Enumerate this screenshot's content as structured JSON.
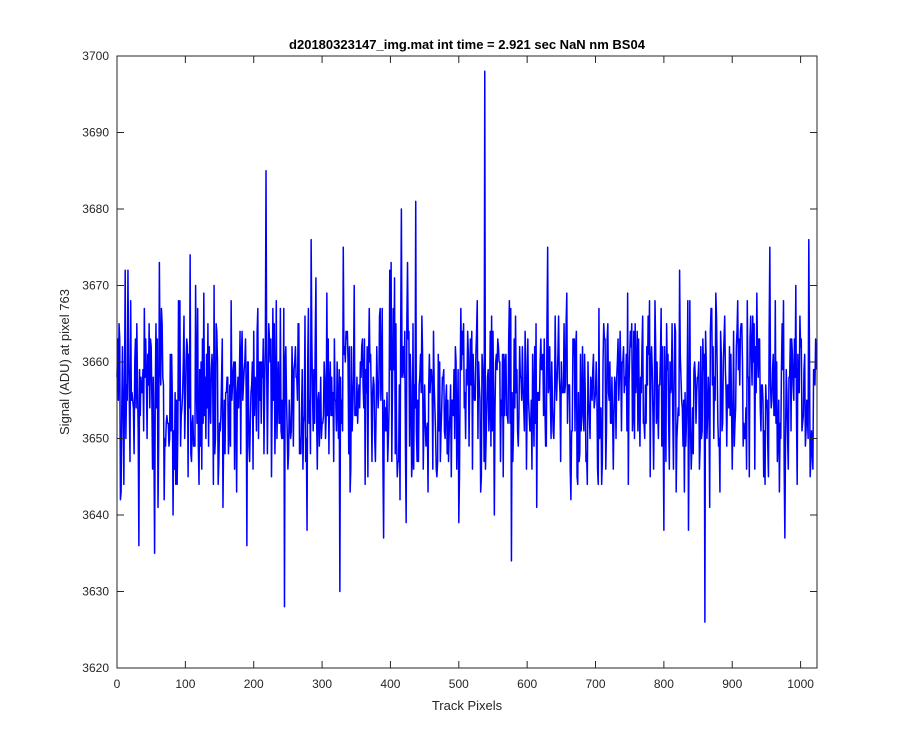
{
  "chart_data": {
    "type": "line",
    "title": "d20180323147_img.mat int time = 2.921 sec  NaN nm BS04",
    "xlabel": "Track Pixels",
    "ylabel": "Signal (ADU) at pixel 763",
    "xlim": [
      0,
      1024
    ],
    "ylim": [
      3620,
      3700
    ],
    "xticks": [
      0,
      100,
      200,
      300,
      400,
      500,
      600,
      700,
      800,
      900,
      1000
    ],
    "yticks": [
      3620,
      3630,
      3640,
      3650,
      3660,
      3670,
      3680,
      3690,
      3700
    ],
    "grid": false,
    "series": [
      {
        "color": "#0000ff",
        "noise": {
          "points": 1024,
          "center": 3656,
          "spread": 6.5,
          "min": 3632,
          "max": 3674
        },
        "spikes": [
          {
            "x": 5,
            "y": 3642
          },
          {
            "x": 12,
            "y": 3672
          },
          {
            "x": 32,
            "y": 3636
          },
          {
            "x": 55,
            "y": 3635
          },
          {
            "x": 62,
            "y": 3673
          },
          {
            "x": 107,
            "y": 3674
          },
          {
            "x": 155,
            "y": 3641
          },
          {
            "x": 190,
            "y": 3636
          },
          {
            "x": 218,
            "y": 3685
          },
          {
            "x": 245,
            "y": 3628
          },
          {
            "x": 278,
            "y": 3638
          },
          {
            "x": 284,
            "y": 3676
          },
          {
            "x": 326,
            "y": 3630
          },
          {
            "x": 331,
            "y": 3675
          },
          {
            "x": 390,
            "y": 3637
          },
          {
            "x": 416,
            "y": 3680
          },
          {
            "x": 437,
            "y": 3681
          },
          {
            "x": 538,
            "y": 3698
          },
          {
            "x": 577,
            "y": 3634
          },
          {
            "x": 630,
            "y": 3675
          },
          {
            "x": 800,
            "y": 3638
          },
          {
            "x": 836,
            "y": 3638
          },
          {
            "x": 860,
            "y": 3626
          },
          {
            "x": 955,
            "y": 3675
          },
          {
            "x": 977,
            "y": 3637
          },
          {
            "x": 1012,
            "y": 3676
          }
        ]
      }
    ]
  }
}
